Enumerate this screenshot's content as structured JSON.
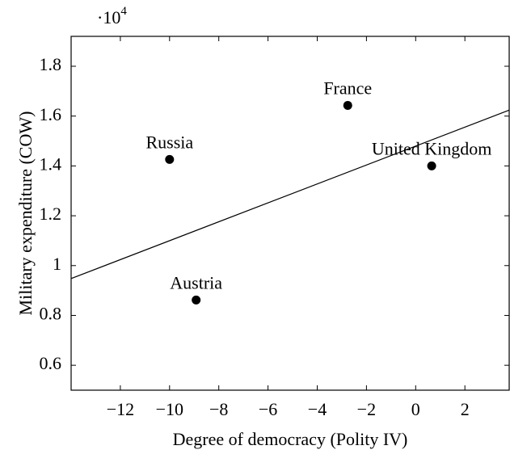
{
  "chart_data": {
    "type": "scatter",
    "x_label": "Degree of democracy (Polity IV)",
    "y_label": "Military expenditure (COW)",
    "y_multiplier": {
      "base": "·10",
      "exponent": "4"
    },
    "points": [
      {
        "label": "France",
        "x": -2.76,
        "y": 1.643
      },
      {
        "label": "United Kingdom",
        "x": 0.65,
        "y": 1.4
      },
      {
        "label": "Russia",
        "x": -10,
        "y": 1.426
      },
      {
        "label": "Austria",
        "x": -8.92,
        "y": 0.862
      }
    ],
    "color": "#000000",
    "trend_line": {
      "x": [
        -14,
        3.8
      ],
      "y": [
        0.948,
        1.624
      ]
    },
    "xlim": [
      -14,
      3.8
    ],
    "ylim": [
      0.5,
      1.92
    ],
    "xticks": [
      {
        "value": -12,
        "label": "−12"
      },
      {
        "value": -10,
        "label": "−10"
      },
      {
        "value": -8,
        "label": "−8"
      },
      {
        "value": -6,
        "label": "−6"
      },
      {
        "value": -4,
        "label": "−4"
      },
      {
        "value": -2,
        "label": "−2"
      },
      0,
      2
    ],
    "yticks": [
      0.6,
      0.8,
      1,
      1.2,
      1.4,
      1.6,
      1.8
    ],
    "grid": false
  }
}
